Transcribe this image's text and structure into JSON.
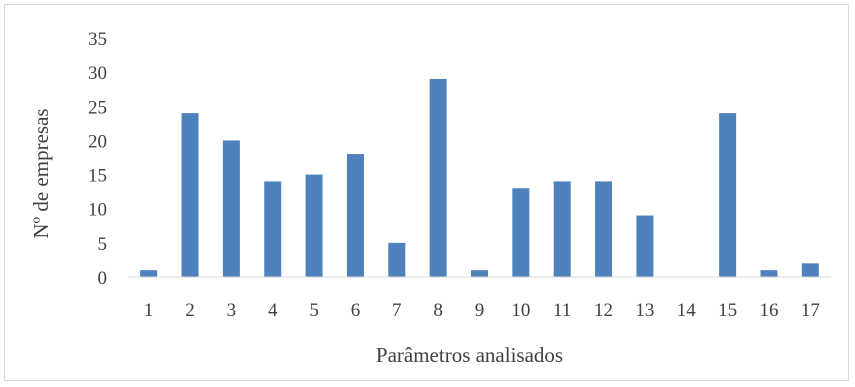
{
  "chart_data": {
    "type": "bar",
    "title": "",
    "xlabel": "Parâmetros analisados",
    "ylabel": "Nº de empresas",
    "categories": [
      "1",
      "2",
      "3",
      "4",
      "5",
      "6",
      "7",
      "8",
      "9",
      "10",
      "11",
      "12",
      "13",
      "14",
      "15",
      "16",
      "17"
    ],
    "values": [
      1,
      24,
      20,
      14,
      15,
      18,
      5,
      29,
      1,
      13,
      14,
      14,
      9,
      0,
      24,
      1,
      2
    ],
    "ylim": [
      0,
      35
    ],
    "yticks": [
      "0",
      "5",
      "10",
      "15",
      "20",
      "25",
      "30",
      "35"
    ],
    "grid": false,
    "legend": "none",
    "bar_color": "#4f81bd",
    "axis_color": "#d9d9d9",
    "text_color": "#404040"
  }
}
